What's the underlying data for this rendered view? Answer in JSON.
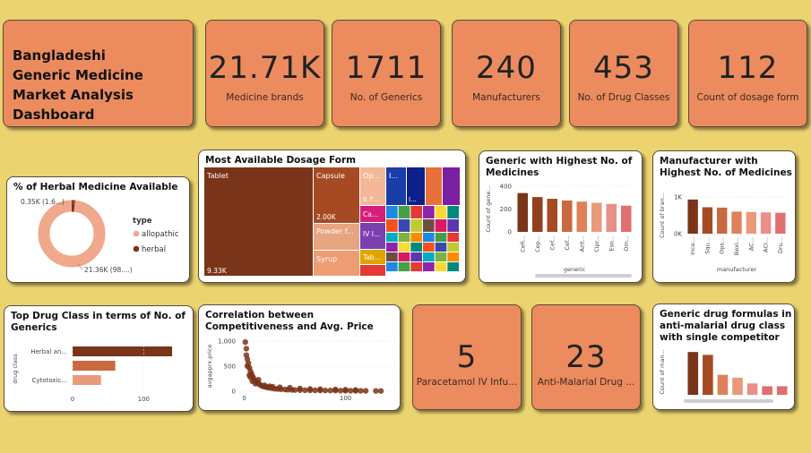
{
  "title": "Bangladeshi Generic Medicine Market Analysis Dashboard",
  "kpis": [
    {
      "value": "21.71K",
      "label": "Medicine brands"
    },
    {
      "value": "1711",
      "label": "No. of Generics"
    },
    {
      "value": "240",
      "label": "Manufacturers"
    },
    {
      "value": "453",
      "label": "No. of Drug Classes"
    },
    {
      "value": "112",
      "label": "Count of dosage form"
    }
  ],
  "kpis_bottom": [
    {
      "value": "5",
      "label": "Paracetamol IV Infu..."
    },
    {
      "value": "23",
      "label": "Anti-Malarial Drug ..."
    }
  ],
  "colors": {
    "dark": "#7a3419",
    "mid": "#c8693f",
    "light": "#f0b39a",
    "accent": "#ec8b5e",
    "background": "#ebd36f"
  },
  "chart_data": [
    {
      "id": "herbal",
      "type": "pie",
      "title": "% of Herbal Medicine Available",
      "legend_title": "type",
      "legend_position": "right",
      "slices": [
        {
          "name": "allopathic",
          "value": 21360,
          "label": "21.36K (98....)",
          "color": "#f0a98c"
        },
        {
          "name": "herbal",
          "value": 350,
          "label": "0.35K (1.6...)",
          "color": "#7a3419"
        }
      ]
    },
    {
      "id": "dosage",
      "type": "treemap",
      "title": "Most Available Dosage Form",
      "items": [
        {
          "name": "Tablet",
          "value_label": "9.33K",
          "color": "#7a3419"
        },
        {
          "name": "Capsule",
          "value_label": "2.00K",
          "color": "#a64a24"
        },
        {
          "name": "Powder f...",
          "value_label": "",
          "color": "#e6a47f"
        },
        {
          "name": "Syrup",
          "value_label": "",
          "color": "#ee9c71"
        },
        {
          "name": "Op...",
          "value_label": "0.7...",
          "color": "#f2b898"
        },
        {
          "name": "I...",
          "value_label": "",
          "color": "#1b3da6"
        },
        {
          "name": "I...",
          "value_label": "",
          "color": "#0d1f8a"
        },
        {
          "name": "Ca...",
          "value_label": "",
          "color": "#d61f7b"
        },
        {
          "name": "IV I...",
          "value_label": "",
          "color": "#7b3fb0"
        },
        {
          "name": "Tab...",
          "value_label": "",
          "color": "#e0a400"
        }
      ]
    },
    {
      "id": "generic_top",
      "type": "bar",
      "title": "Generic with Highest No. of Medicines",
      "xlabel": "generic",
      "ylabel": "Count of gene...",
      "ylim": [
        0,
        400
      ],
      "yticks": [
        "400",
        "200",
        "0"
      ],
      "categories": [
        "Cefi...",
        "Cep...",
        "Cef...",
        "Cef...",
        "Azit...",
        "Cipr...",
        "Eso...",
        "Om..."
      ],
      "values": [
        340,
        305,
        290,
        275,
        265,
        255,
        245,
        230
      ],
      "colors": [
        "#7a3419",
        "#923f1f",
        "#a64a24",
        "#c8693f",
        "#dd8258",
        "#e89a7a",
        "#e88f8a",
        "#e07070"
      ]
    },
    {
      "id": "manufacturer_top",
      "type": "bar",
      "title": "Manufacturer with Highest No. of Medicines",
      "xlabel": "manufacturer",
      "ylabel": "Count of bran...",
      "ylim": [
        0,
        1000
      ],
      "yticks": [
        "1K",
        "0K"
      ],
      "categories": [
        "Ince...",
        "Squ...",
        "Ops...",
        "Bexi...",
        "AC...",
        "ACI...",
        "Dru..."
      ],
      "values": [
        930,
        720,
        710,
        600,
        590,
        580,
        570
      ],
      "colors": [
        "#7a3419",
        "#a64a24",
        "#c8693f",
        "#dd8258",
        "#e89a7a",
        "#e88f8a",
        "#e07070"
      ]
    },
    {
      "id": "drug_class",
      "type": "bar",
      "orientation": "horizontal",
      "title": "Top Drug Class in terms of No. of Generics",
      "ylabel": "drug class",
      "categories": [
        "Herbal an...",
        "",
        "Cytotoxic..."
      ],
      "values": [
        140,
        60,
        40
      ],
      "xticks": [
        "0",
        "100"
      ],
      "xlim": [
        0,
        150
      ],
      "colors": [
        "#7a3419",
        "#c8693f",
        "#e89a7a"
      ]
    },
    {
      "id": "scatter",
      "type": "scatter",
      "title": "Correlation between Competitiveness and Avg. Price",
      "ylabel": "avgapprx.price",
      "xticks": [
        "0",
        "100"
      ],
      "yticks": [
        "1,000",
        "500",
        "0"
      ],
      "xlim": [
        -5,
        150
      ],
      "ylim": [
        0,
        1000
      ],
      "points": [
        [
          1,
          980
        ],
        [
          2,
          850
        ],
        [
          2,
          720
        ],
        [
          3,
          640
        ],
        [
          4,
          560
        ],
        [
          5,
          470
        ],
        [
          6,
          400
        ],
        [
          7,
          350
        ],
        [
          8,
          300
        ],
        [
          9,
          260
        ],
        [
          10,
          220
        ],
        [
          12,
          190
        ],
        [
          13,
          160
        ],
        [
          15,
          140
        ],
        [
          16,
          120
        ],
        [
          18,
          100
        ],
        [
          20,
          90
        ],
        [
          22,
          80
        ],
        [
          24,
          70
        ],
        [
          27,
          60
        ],
        [
          30,
          50
        ],
        [
          33,
          45
        ],
        [
          36,
          40
        ],
        [
          40,
          35
        ],
        [
          43,
          30
        ],
        [
          47,
          28
        ],
        [
          50,
          25
        ],
        [
          55,
          22
        ],
        [
          60,
          20
        ],
        [
          65,
          18
        ],
        [
          70,
          18
        ],
        [
          75,
          16
        ],
        [
          80,
          15
        ],
        [
          85,
          14
        ],
        [
          90,
          14
        ],
        [
          95,
          12
        ],
        [
          100,
          12
        ],
        [
          105,
          10
        ],
        [
          110,
          10
        ],
        [
          115,
          8
        ],
        [
          120,
          8
        ],
        [
          130,
          6
        ],
        [
          135,
          5
        ],
        [
          5,
          320
        ],
        [
          8,
          200
        ],
        [
          11,
          150
        ],
        [
          20,
          120
        ],
        [
          25,
          100
        ],
        [
          35,
          80
        ],
        [
          45,
          70
        ],
        [
          55,
          55
        ],
        [
          65,
          45
        ],
        [
          75,
          40
        ],
        [
          90,
          35
        ],
        [
          100,
          30
        ],
        [
          110,
          25
        ],
        [
          3,
          500
        ],
        [
          6,
          280
        ],
        [
          14,
          230
        ],
        [
          28,
          90
        ]
      ],
      "color": "#7a3419"
    },
    {
      "id": "antimalarial",
      "type": "bar",
      "title": "Generic drug formulas in anti-malarial drug class with single competitor",
      "ylabel": "Count of man...",
      "ylim": [
        0,
        16
      ],
      "categories": [
        "",
        "",
        "",
        "",
        "",
        "",
        ""
      ],
      "values": [
        15,
        14,
        7,
        6,
        4,
        3,
        3
      ],
      "colors": [
        "#7a3419",
        "#a64a24",
        "#dd8258",
        "#e89a7a",
        "#e88f8a",
        "#e07070",
        "#e07070"
      ]
    }
  ]
}
